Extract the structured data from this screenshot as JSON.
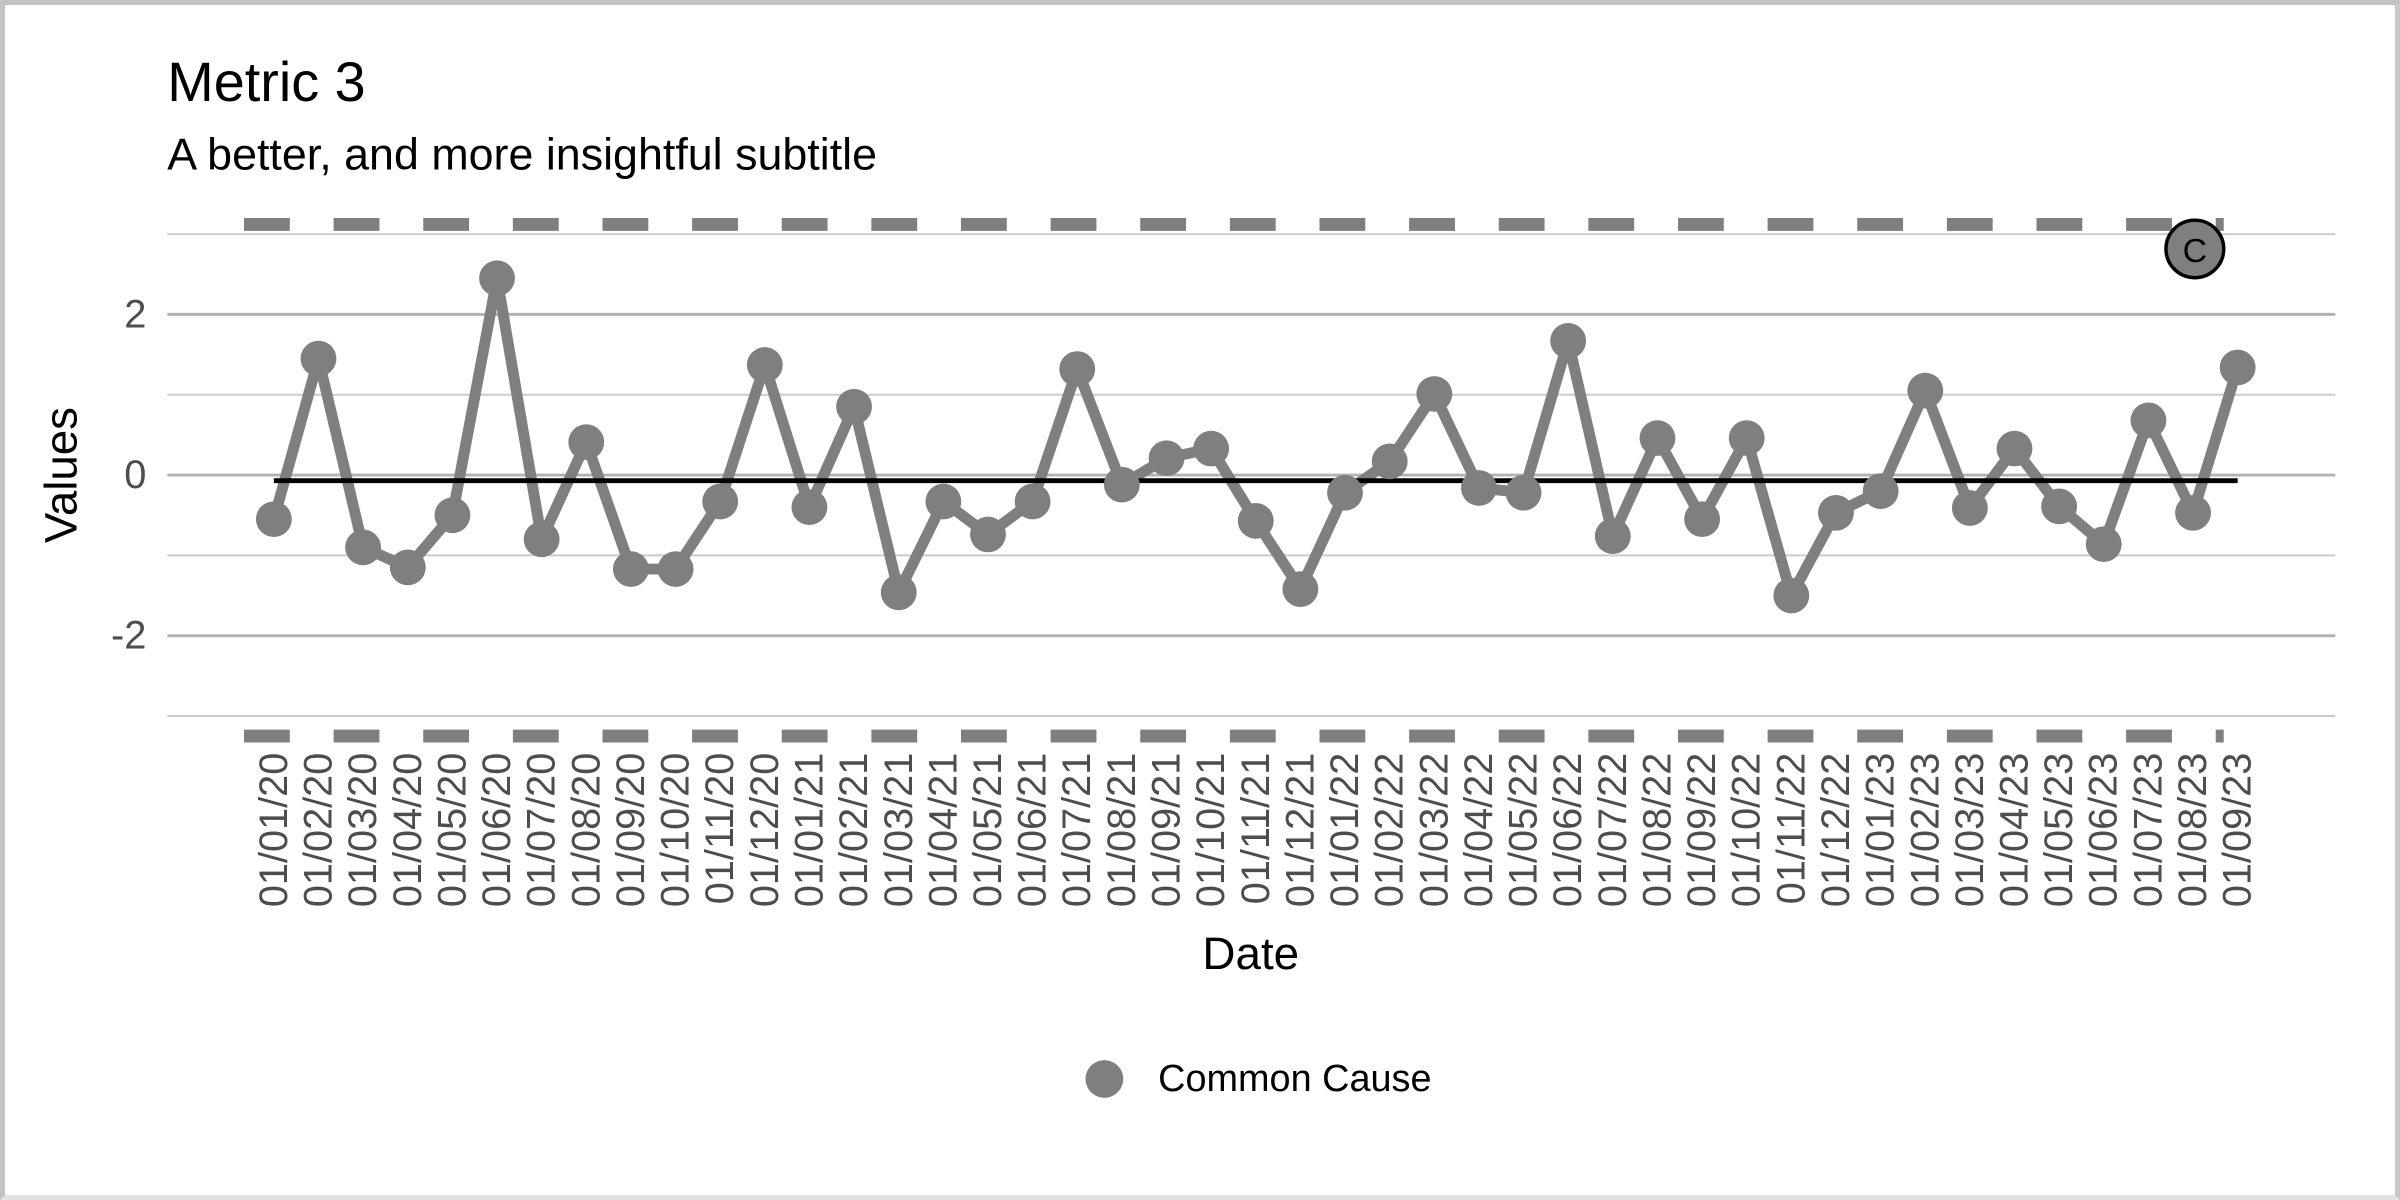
{
  "window": {
    "background": "#ffffff",
    "frame_color": "#c3c3c3"
  },
  "chart_data": {
    "type": "line",
    "title": "Metric 3",
    "subtitle": "A better, and more insightful subtitle",
    "xlabel": "Date",
    "ylabel": "Values",
    "legend_position": "bottom",
    "legend": {
      "items": [
        {
          "label": "Common Cause",
          "marker": "circle",
          "color": "#7f7f7f"
        }
      ]
    },
    "annotation_badge": "C",
    "x": [
      "01/01/20",
      "01/02/20",
      "01/03/20",
      "01/04/20",
      "01/05/20",
      "01/06/20",
      "01/07/20",
      "01/08/20",
      "01/09/20",
      "01/10/20",
      "01/11/20",
      "01/12/20",
      "01/01/21",
      "01/02/21",
      "01/03/21",
      "01/04/21",
      "01/05/21",
      "01/06/21",
      "01/07/21",
      "01/08/21",
      "01/09/21",
      "01/10/21",
      "01/11/21",
      "01/12/21",
      "01/01/22",
      "01/02/22",
      "01/03/22",
      "01/04/22",
      "01/05/22",
      "01/06/22",
      "01/07/22",
      "01/08/22",
      "01/09/22",
      "01/10/22",
      "01/11/22",
      "01/12/22",
      "01/01/23",
      "01/02/23",
      "01/03/23",
      "01/04/23",
      "01/05/23",
      "01/06/23",
      "01/07/23",
      "01/08/23",
      "01/09/23"
    ],
    "series": [
      {
        "name": "Common Cause",
        "color": "#7f7f7f",
        "values": [
          -0.55,
          1.45,
          -0.9,
          -1.15,
          -0.5,
          2.45,
          -0.8,
          0.41,
          -1.17,
          -1.17,
          -0.33,
          1.37,
          -0.4,
          0.85,
          -1.46,
          -0.33,
          -0.74,
          -0.33,
          1.32,
          -0.12,
          0.21,
          0.33,
          -0.57,
          -1.42,
          -0.22,
          0.17,
          1.01,
          -0.16,
          -0.22,
          1.67,
          -0.76,
          0.46,
          -0.55,
          0.46,
          -1.5,
          -0.47,
          -0.2,
          1.05,
          -0.41,
          0.33,
          -0.39,
          -0.86,
          0.68,
          -0.47,
          1.34
        ]
      }
    ],
    "center_line": -0.07,
    "upper_control_limit": 3.12,
    "lower_control_limit": -3.25,
    "yticks": [
      2,
      0,
      -2
    ],
    "gridline_values": [
      3,
      2,
      1,
      0,
      -1,
      -2,
      -3
    ],
    "major_gridline_values": [
      2,
      0,
      -2
    ],
    "ylim": [
      -3.6,
      3.65
    ],
    "grid": true,
    "colors": {
      "series": "#7f7f7f",
      "center_line": "#000000",
      "limit_line": "#7f7f7f",
      "major_grid": "#b2b2b2",
      "minor_grid": "#cbcbcb",
      "tick_text": "#4d4d4d",
      "text": "#000000",
      "badge_fill": "#7f7f7f",
      "badge_border": "#000000"
    }
  }
}
